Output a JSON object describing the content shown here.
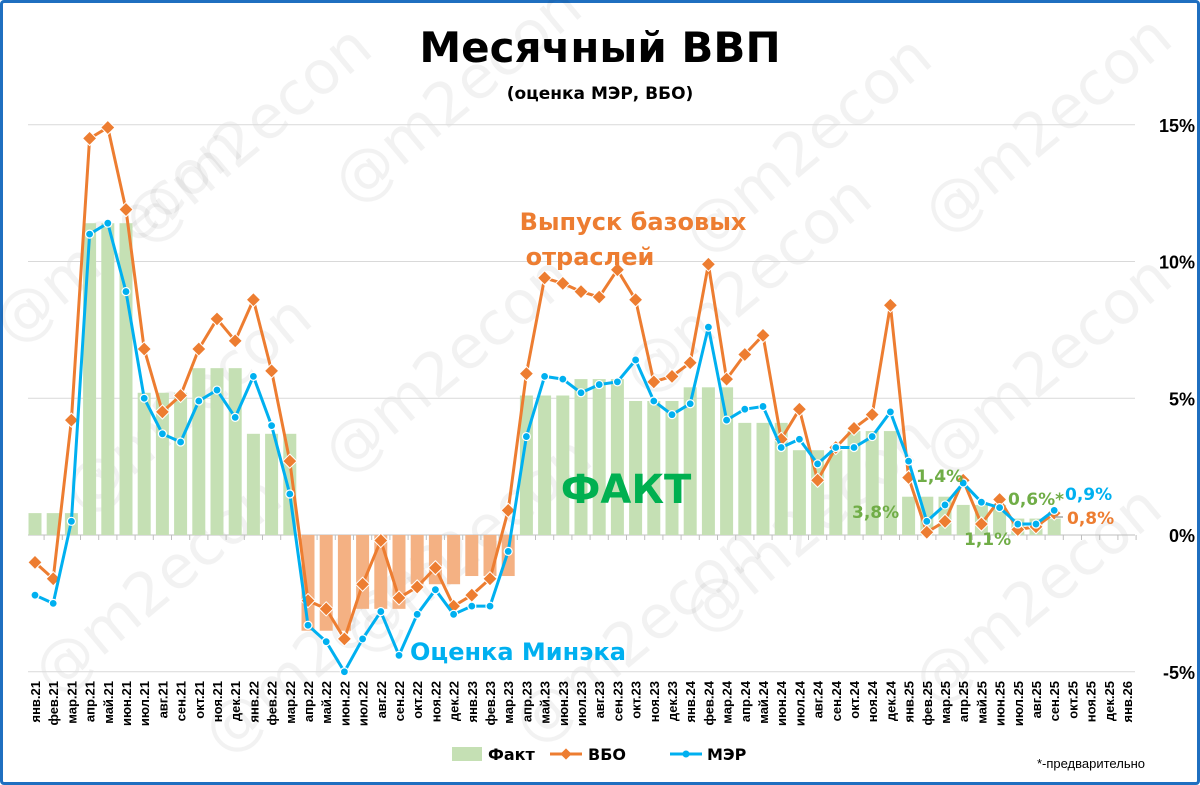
{
  "chart_data": {
    "type": "bar+line",
    "title": "Месячный ВВП",
    "subtitle": "(оценка МЭР, ВБО)",
    "ylim": [
      -5,
      15
    ],
    "yticks": [
      15,
      10,
      5,
      0,
      -5
    ],
    "ytick_labels": [
      "15%",
      "10%",
      "5%",
      "0%",
      "-5%"
    ],
    "grid": true,
    "legend_position": "bottom",
    "categories": [
      "янв.21",
      "фев.21",
      "мар.21",
      "апр.21",
      "май.21",
      "июн.21",
      "июл.21",
      "авг.21",
      "сен.21",
      "окт.21",
      "ноя.21",
      "дек.21",
      "янв.22",
      "фев.22",
      "мар.22",
      "апр.22",
      "май.22",
      "июн.22",
      "июл.22",
      "авг.22",
      "сен.22",
      "окт.22",
      "ноя.22",
      "дек.22",
      "янв.23",
      "фев.23",
      "мар.23",
      "апр.23",
      "май.23",
      "июн.23",
      "июл.23",
      "авг.23",
      "сен.23",
      "окт.23",
      "ноя.23",
      "дек.23",
      "янв.24",
      "фев.24",
      "мар.24",
      "апр.24",
      "май.24",
      "июн.24",
      "июл.24",
      "авг.24",
      "сен.24",
      "окт.24",
      "ноя.24",
      "дек.24",
      "янв.25",
      "фев.25",
      "мар.25",
      "апр.25",
      "май.25",
      "июн.25",
      "июл.25",
      "авг.25",
      "сен.25",
      "окт.25",
      "ноя.25",
      "дек.25",
      "янв.26"
    ],
    "series": [
      {
        "name": "Факт",
        "type": "bar",
        "color": "#c5e0b4",
        "negative_color": "#f4b183",
        "values": [
          0.8,
          0.8,
          0.8,
          11.4,
          11.4,
          11.4,
          5.2,
          5.2,
          5.2,
          6.1,
          6.1,
          6.1,
          3.7,
          3.7,
          3.7,
          -3.5,
          -3.5,
          -3.5,
          -2.7,
          -2.7,
          -2.7,
          -1.8,
          -1.8,
          -1.8,
          -1.5,
          -1.5,
          -1.5,
          5.1,
          5.1,
          5.1,
          5.7,
          5.7,
          5.7,
          4.9,
          4.9,
          4.9,
          5.4,
          5.4,
          5.4,
          4.1,
          4.1,
          4.1,
          3.1,
          3.1,
          3.1,
          3.8,
          3.8,
          3.8,
          1.4,
          1.4,
          1.4,
          1.1,
          1.1,
          1.1,
          0.6,
          0.6,
          0.6,
          null,
          null,
          null,
          null
        ]
      },
      {
        "name": "ВБО",
        "type": "line",
        "marker": "diamond",
        "color": "#ed7d31",
        "values": [
          -1.0,
          -1.6,
          4.2,
          14.5,
          14.9,
          11.9,
          6.8,
          4.5,
          5.1,
          6.8,
          7.9,
          7.1,
          8.6,
          6.0,
          2.7,
          -2.4,
          -2.7,
          -3.8,
          -1.8,
          -0.2,
          -2.3,
          -1.9,
          -1.2,
          -2.6,
          -2.2,
          -1.6,
          0.9,
          5.9,
          9.4,
          9.2,
          8.9,
          8.7,
          9.7,
          8.6,
          5.6,
          5.8,
          6.3,
          9.9,
          5.7,
          6.6,
          7.3,
          3.5,
          4.6,
          2.0,
          3.2,
          3.9,
          4.4,
          8.4,
          2.1,
          0.1,
          0.5,
          2.0,
          0.4,
          1.3,
          0.2,
          0.3,
          0.8,
          null,
          null,
          null,
          null
        ]
      },
      {
        "name": "МЭР",
        "type": "line",
        "marker": "circle",
        "color": "#00b0f0",
        "values": [
          -2.2,
          -2.5,
          0.5,
          11.0,
          11.4,
          8.9,
          5.0,
          3.7,
          3.4,
          4.9,
          5.3,
          4.3,
          5.8,
          4.0,
          1.5,
          -3.3,
          -3.9,
          -5.0,
          -3.8,
          -2.8,
          -4.4,
          -2.9,
          -2.0,
          -2.9,
          -2.6,
          -2.6,
          -0.6,
          3.6,
          5.8,
          5.7,
          5.2,
          5.5,
          5.6,
          6.4,
          4.9,
          4.4,
          4.8,
          7.6,
          4.2,
          4.6,
          4.7,
          3.2,
          3.5,
          2.6,
          3.2,
          3.2,
          3.6,
          4.5,
          2.7,
          0.5,
          1.1,
          1.9,
          1.2,
          1.0,
          0.4,
          0.4,
          0.9,
          null,
          null,
          null,
          null
        ]
      }
    ],
    "annotations": {
      "vbo_label_1": "Выпуск базовых",
      "vbo_label_2": "отраслей",
      "mer_label": "Оценка Минэка",
      "fact_label": "ФАКТ",
      "q4_24": "3,8%",
      "q1_25": "1,4%",
      "q2_25": "1,1%",
      "q3_25": "0,6%*",
      "mer_last": "0,9%",
      "vbo_last": "0,8%"
    },
    "footnote": "*-предварительно"
  },
  "watermark": "@m2econ",
  "colors": {
    "frame": "#1f6fc0",
    "fact_text": "#00b050",
    "fact_value": "#70ad47"
  }
}
